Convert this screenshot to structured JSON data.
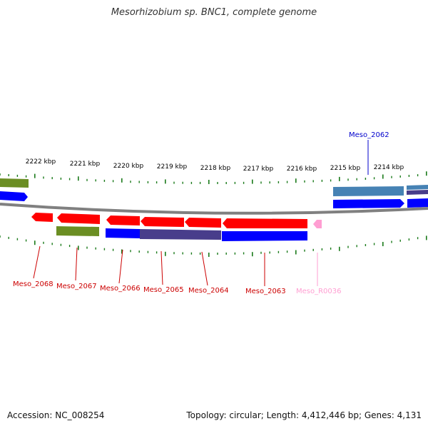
{
  "title": "Mesorhizobium sp. BNC1, complete genome",
  "accession_label": "Accession: NC_008254",
  "summary_label": "Topology: circular; Length: 4,412,446 bp; Genes: 4,131",
  "colors": {
    "forward_red": "#ff0000",
    "reverse_blue": "#0000ff",
    "olive": "#6b8e23",
    "steel_blue": "#4682b4",
    "slate": "#483d8b",
    "rna_pink": "#ff9ed2",
    "tick_green": "#1a7a1a",
    "backbone_grey": "#808080"
  },
  "ruler": {
    "ticks": [
      "2222 kbp",
      "2221 kbp",
      "2220 kbp",
      "2219 kbp",
      "2218 kbp",
      "2217 kbp",
      "2216 kbp",
      "2215 kbp",
      "2214 kbp"
    ]
  },
  "gene_labels": [
    {
      "text": "Meso_2068",
      "color": "#cc0000"
    },
    {
      "text": "Meso_2067",
      "color": "#cc0000"
    },
    {
      "text": "Meso_2066",
      "color": "#cc0000"
    },
    {
      "text": "Meso_2065",
      "color": "#cc0000"
    },
    {
      "text": "Meso_2064",
      "color": "#cc0000"
    },
    {
      "text": "Meso_2063",
      "color": "#cc0000"
    },
    {
      "text": "Meso_R0036",
      "color": "#ff9ed2"
    },
    {
      "text": "Meso_2062",
      "color": "#0000cc"
    }
  ]
}
